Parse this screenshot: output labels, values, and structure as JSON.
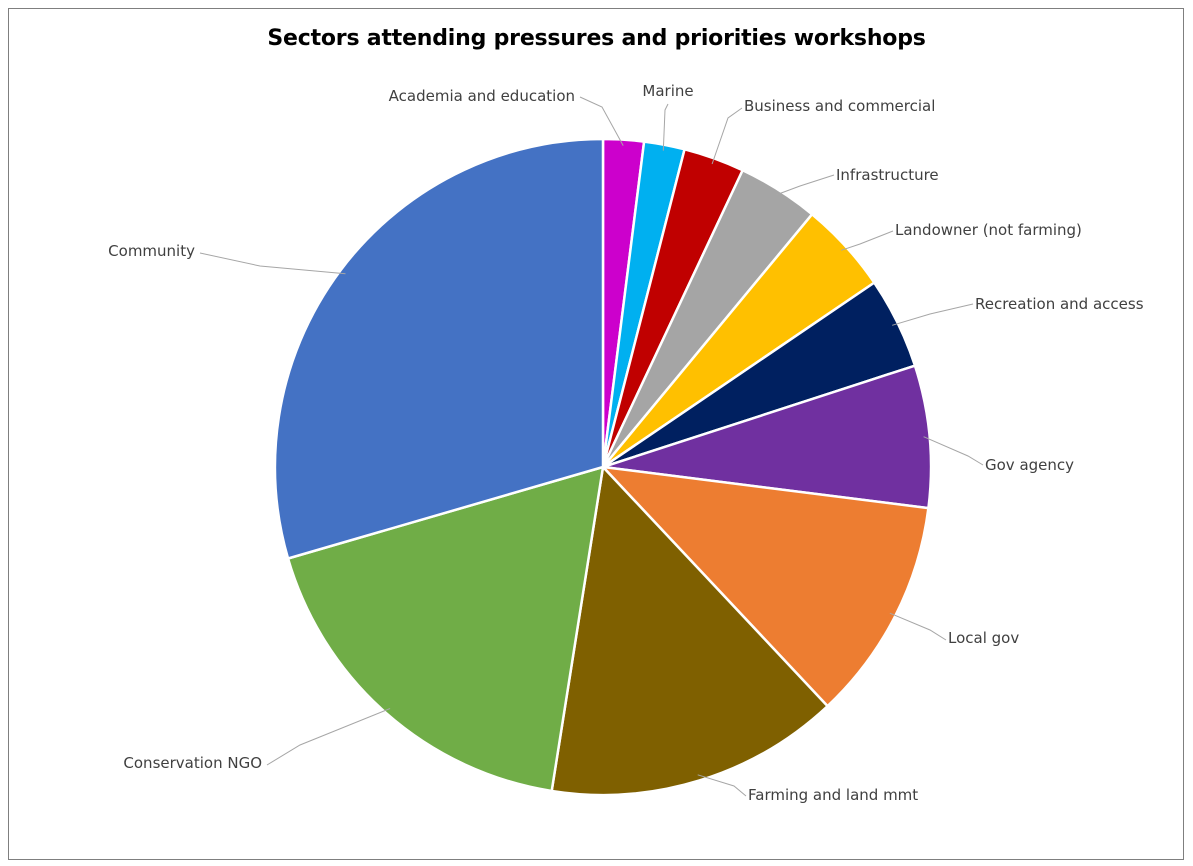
{
  "chart_data": {
    "type": "pie",
    "title": "Sectors attending pressures and priorities workshops",
    "legend": "none",
    "start_angle_deg": 0,
    "direction": "clockwise",
    "slices": [
      {
        "label": "Academia and education",
        "value": 2.0,
        "color": "#CC00CC"
      },
      {
        "label": "Marine",
        "value": 2.0,
        "color": "#00B0F0"
      },
      {
        "label": "Business and commercial",
        "value": 3.0,
        "color": "#C00000"
      },
      {
        "label": "Infrastructure",
        "value": 4.0,
        "color": "#A5A5A5"
      },
      {
        "label": "Landowner (not farming)",
        "value": 4.5,
        "color": "#FFC000"
      },
      {
        "label": "Recreation and access",
        "value": 4.5,
        "color": "#002060"
      },
      {
        "label": "Gov agency",
        "value": 7.0,
        "color": "#7030A0"
      },
      {
        "label": "Local gov",
        "value": 11.0,
        "color": "#ED7D31"
      },
      {
        "label": "Farming and land mmt",
        "value": 14.5,
        "color": "#7F6000"
      },
      {
        "label": "Conservation NGO",
        "value": 18.0,
        "color": "#70AD47"
      },
      {
        "label": "Community",
        "value": 29.5,
        "color": "#4472C4"
      }
    ]
  }
}
